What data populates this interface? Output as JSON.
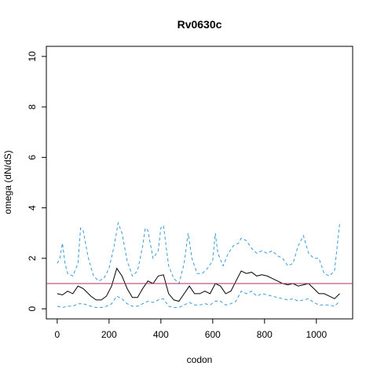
{
  "chart_data": {
    "type": "line",
    "title": "Rv0630c",
    "xlabel": "codon",
    "ylabel": "omega (dN/dS)",
    "xlim": [
      -42,
      1140
    ],
    "ylim": [
      -0.4,
      10.4
    ],
    "x_ticks": [
      0,
      200,
      400,
      600,
      800,
      1000
    ],
    "y_ticks": [
      0,
      2,
      4,
      6,
      8,
      10
    ],
    "grid": false,
    "legend": "none",
    "reference_line": {
      "y": 1.0,
      "color": "#b03060"
    },
    "colors": {
      "median": "#000000",
      "bounds": "#3a9bd9",
      "reference": "#b03060"
    },
    "series": [
      {
        "role": "median",
        "style": "solid",
        "x": [
          0,
          20,
          40,
          60,
          80,
          100,
          130,
          150,
          170,
          190,
          210,
          230,
          250,
          270,
          290,
          310,
          330,
          350,
          370,
          390,
          410,
          430,
          450,
          470,
          490,
          510,
          530,
          550,
          570,
          590,
          610,
          630,
          650,
          670,
          690,
          710,
          730,
          750,
          770,
          790,
          810,
          830,
          850,
          870,
          890,
          910,
          930,
          950,
          970,
          990,
          1010,
          1030,
          1050,
          1070,
          1090
        ],
        "values": [
          0.6,
          0.55,
          0.7,
          0.6,
          0.9,
          0.8,
          0.5,
          0.35,
          0.35,
          0.5,
          0.9,
          1.6,
          1.3,
          0.8,
          0.45,
          0.45,
          0.8,
          1.1,
          1.0,
          1.3,
          1.35,
          0.6,
          0.35,
          0.3,
          0.6,
          0.9,
          0.6,
          0.6,
          0.7,
          0.6,
          1.0,
          0.9,
          0.6,
          0.7,
          1.1,
          1.5,
          1.4,
          1.45,
          1.3,
          1.35,
          1.3,
          1.2,
          1.1,
          1.0,
          0.95,
          1.0,
          0.9,
          0.95,
          1.0,
          0.8,
          0.6,
          0.6,
          0.5,
          0.4,
          0.6
        ]
      },
      {
        "role": "upper-bound",
        "style": "dashed",
        "x": [
          0,
          10,
          20,
          30,
          40,
          60,
          80,
          90,
          100,
          120,
          140,
          160,
          180,
          200,
          220,
          235,
          250,
          270,
          290,
          310,
          330,
          340,
          350,
          370,
          390,
          400,
          410,
          430,
          450,
          470,
          490,
          505,
          520,
          540,
          560,
          580,
          600,
          610,
          620,
          640,
          660,
          680,
          700,
          710,
          730,
          750,
          770,
          790,
          810,
          830,
          850,
          870,
          890,
          910,
          930,
          950,
          970,
          990,
          1010,
          1030,
          1050,
          1070,
          1090
        ],
        "values": [
          1.8,
          2.0,
          2.6,
          1.8,
          1.4,
          1.3,
          1.8,
          3.2,
          3.1,
          2.0,
          1.3,
          1.1,
          1.2,
          1.6,
          2.5,
          3.4,
          3.0,
          1.9,
          1.3,
          1.5,
          2.5,
          3.2,
          3.1,
          2.0,
          2.3,
          3.2,
          3.3,
          1.7,
          1.2,
          1.0,
          1.8,
          3.0,
          2.0,
          1.4,
          1.4,
          1.6,
          1.9,
          3.0,
          2.2,
          1.7,
          2.2,
          2.5,
          2.6,
          2.8,
          2.7,
          2.4,
          2.2,
          2.3,
          2.2,
          2.3,
          2.1,
          2.0,
          1.7,
          1.8,
          2.5,
          2.9,
          2.2,
          2.0,
          2.0,
          1.4,
          1.3,
          1.5,
          3.4
        ]
      },
      {
        "role": "lower-bound",
        "style": "dashed",
        "x": [
          0,
          20,
          40,
          60,
          80,
          100,
          130,
          150,
          170,
          190,
          210,
          230,
          250,
          270,
          290,
          310,
          330,
          350,
          370,
          390,
          410,
          430,
          450,
          470,
          490,
          510,
          530,
          550,
          570,
          590,
          610,
          630,
          650,
          670,
          690,
          710,
          730,
          750,
          770,
          790,
          810,
          830,
          850,
          870,
          890,
          910,
          930,
          950,
          970,
          990,
          1010,
          1030,
          1050,
          1070,
          1090
        ],
        "values": [
          0.1,
          0.05,
          0.1,
          0.1,
          0.2,
          0.2,
          0.1,
          0.05,
          0.05,
          0.1,
          0.2,
          0.5,
          0.4,
          0.2,
          0.1,
          0.1,
          0.2,
          0.3,
          0.25,
          0.35,
          0.4,
          0.1,
          0.05,
          0.05,
          0.15,
          0.25,
          0.15,
          0.15,
          0.2,
          0.15,
          0.3,
          0.3,
          0.15,
          0.2,
          0.3,
          0.7,
          0.6,
          0.7,
          0.5,
          0.6,
          0.55,
          0.5,
          0.45,
          0.4,
          0.35,
          0.4,
          0.3,
          0.35,
          0.4,
          0.25,
          0.15,
          0.15,
          0.15,
          0.1,
          0.3
        ]
      }
    ]
  }
}
